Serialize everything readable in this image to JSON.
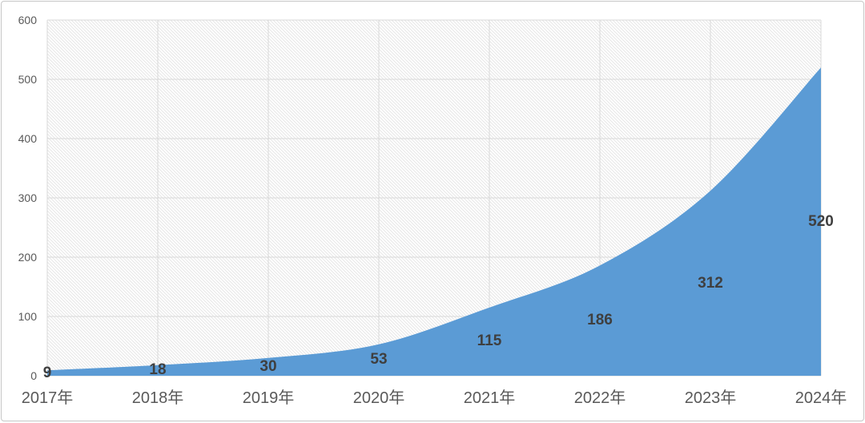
{
  "chart_data": {
    "type": "area",
    "categories": [
      "2017年",
      "2018年",
      "2019年",
      "2020年",
      "2021年",
      "2022年",
      "2023年",
      "2024年"
    ],
    "values": [
      9,
      18,
      30,
      53,
      115,
      186,
      312,
      520
    ],
    "data_labels_shown": true,
    "title": "",
    "xlabel": "",
    "ylabel": "",
    "ylim": [
      0,
      600
    ],
    "yticks": [
      0,
      100,
      200,
      300,
      400,
      500,
      600
    ],
    "grid": "horizontal-and-vertical",
    "legend": "none",
    "smooth_line": true,
    "colors": {
      "area_fill": "#5B9BD5",
      "gridline": "#d9d9d9",
      "plot_hatch": "#e6e6e6",
      "axis_text": "#595959",
      "data_label_text": "#3f3f3f",
      "card_border": "#c6c6c6",
      "background": "#ffffff"
    }
  }
}
